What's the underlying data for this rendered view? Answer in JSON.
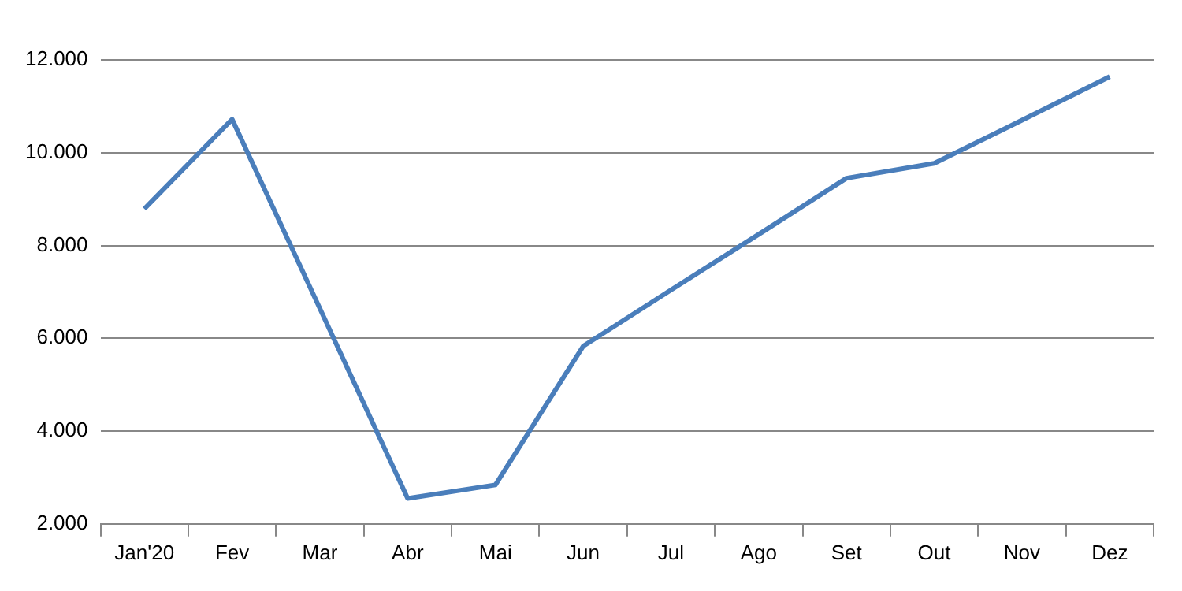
{
  "chart_data": {
    "type": "line",
    "categories": [
      "Jan'20",
      "Fev",
      "Mar",
      "Abr",
      "Mai",
      "Jun",
      "Jul",
      "Ago",
      "Set",
      "Out",
      "Nov",
      "Dez"
    ],
    "series": [
      {
        "color": "#4a7ebb",
        "values": [
          8790,
          10720,
          6640,
          2550,
          2840,
          5830,
          7040,
          8240,
          9450,
          9770,
          10700,
          11640
        ]
      }
    ],
    "ylim": [
      2000,
      12000
    ],
    "yticks": [
      {
        "value": 2000,
        "label": "2.000"
      },
      {
        "value": 4000,
        "label": "4.000"
      },
      {
        "value": 6000,
        "label": "6.000"
      },
      {
        "value": 8000,
        "label": "8.000"
      },
      {
        "value": 10000,
        "label": "10.000"
      },
      {
        "value": 12000,
        "label": "12.000"
      }
    ],
    "grid": "y",
    "legend": false,
    "marker": "none",
    "line_style": "solid"
  }
}
